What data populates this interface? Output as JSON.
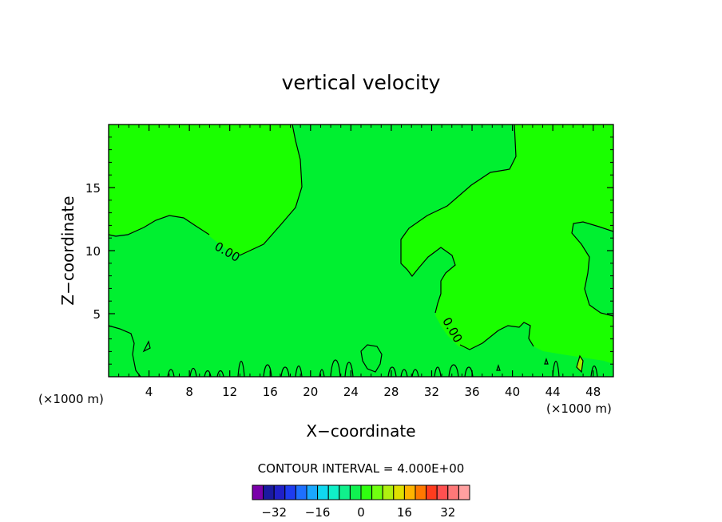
{
  "chart_data": {
    "type": "contour",
    "title": "vertical velocity",
    "xlabel": "X−coordinate",
    "ylabel": "Z−coordinate",
    "x_unit_left": "(×1000 m)",
    "x_unit_right": "(×1000 m)",
    "xlim": [
      0,
      50
    ],
    "ylim": [
      0,
      20
    ],
    "x_ticks": [
      4,
      8,
      12,
      16,
      20,
      24,
      28,
      32,
      36,
      40,
      44,
      48
    ],
    "y_ticks": [
      5,
      10,
      15
    ],
    "contour_labels": [
      "0.00",
      "0.00"
    ],
    "contour_interval_text": "CONTOUR INTERVAL = 4.000E+00",
    "colors": {
      "level_0_to_4": "#1aff00",
      "level_neg4_to_0": "#00f030",
      "line": "#000000"
    },
    "colorbar": {
      "colors": [
        "#7a00aa",
        "#1a1aa0",
        "#2020c8",
        "#1e3cf0",
        "#1e70ff",
        "#1aa8ff",
        "#10d8f0",
        "#10f0c8",
        "#10f08c",
        "#10f050",
        "#30ff10",
        "#70ff10",
        "#b0f010",
        "#e0e000",
        "#ffb400",
        "#ff7800",
        "#ff3c1e",
        "#ff5050",
        "#ff7878",
        "#ffa0a0"
      ],
      "tick_labels": [
        "−32",
        "−16",
        "0",
        "16",
        "32"
      ],
      "tick_values": [
        -32,
        -16,
        0,
        16,
        32
      ],
      "range": [
        -40,
        40
      ]
    }
  }
}
